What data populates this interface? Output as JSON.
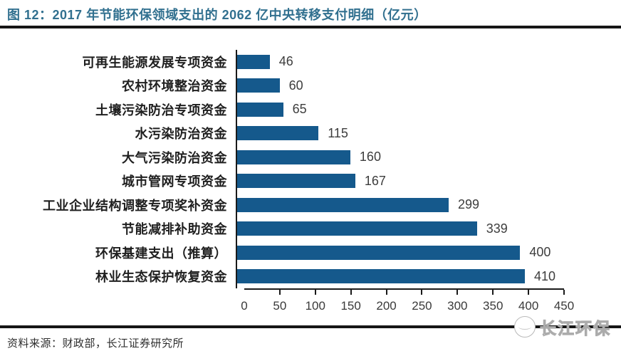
{
  "header": {
    "title": "图 12：2017 年节能环保领域支出的 2062 亿中央转移支付明细（亿元）",
    "title_color": "#31708f"
  },
  "chart_data": {
    "type": "bar",
    "orientation": "horizontal",
    "title": "2017 年节能环保领域支出的 2062 亿中央转移支付明细（亿元）",
    "categories": [
      "可再生能源发展专项资金",
      "农村环境整治资金",
      "土壤污染防治专项资金",
      "水污染防治资金",
      "大气污染防治资金",
      "城市管网专项资金",
      "工业企业结构调整专项奖补资金",
      "节能减排补助资金",
      "环保基建支出（推算）",
      "林业生态保护恢复资金"
    ],
    "values": [
      46,
      60,
      65,
      115,
      160,
      167,
      299,
      339,
      400,
      410
    ],
    "xlim": [
      0,
      450
    ],
    "x_ticks": [
      0,
      50,
      100,
      150,
      200,
      250,
      300,
      350,
      400,
      450
    ],
    "bar_color": "#15598C",
    "value_labels_shown": true,
    "grid": false,
    "legend": "none"
  },
  "footer": {
    "source": "资料来源：财政部，长江证券研究所",
    "logo_text": "长江环保"
  }
}
